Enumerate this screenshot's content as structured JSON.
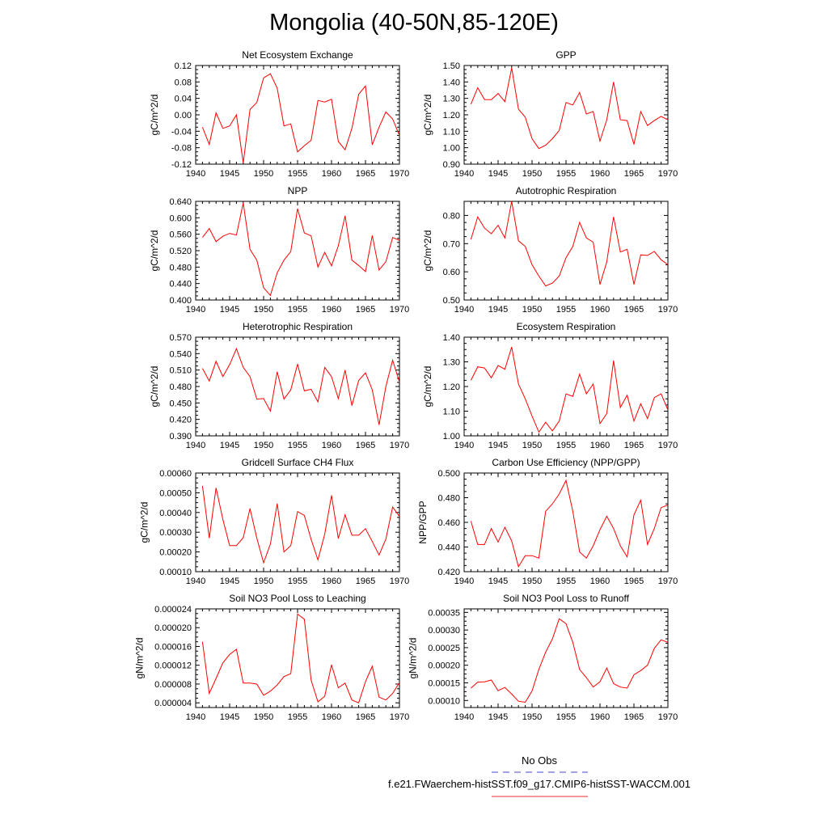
{
  "title": "Mongolia (40-50N,85-120E)",
  "legend": [
    {
      "label": "No Obs",
      "color": "#4444cc",
      "dash": "dashed"
    },
    {
      "label": "f.e21.FWaerchem-histSST.f09_g17.CMIP6-histSST-WACCM.001",
      "color": "#e03030",
      "dash": "solid"
    }
  ],
  "chart_data": [
    {
      "type": "line",
      "title": "Net Ecosystem Exchange",
      "ylabel": "gC/m^2/d",
      "xlim": [
        1940,
        1970
      ],
      "ylim": [
        -0.12,
        0.12
      ],
      "xticks": [
        "1940",
        "1945",
        "1950",
        "1955",
        "1960",
        "1965",
        "1970"
      ],
      "yticks": [
        "-0.12",
        "-0.08",
        "-0.04",
        "0.00",
        "0.04",
        "0.08",
        "0.12"
      ],
      "x": [
        1941,
        1942,
        1943,
        1944,
        1945,
        1946,
        1947,
        1948,
        1949,
        1950,
        1951,
        1952,
        1953,
        1954,
        1955,
        1956,
        1957,
        1958,
        1959,
        1960,
        1961,
        1962,
        1963,
        1964,
        1965,
        1966,
        1967,
        1968,
        1969,
        1970
      ],
      "series": [
        {
          "color": "#ff0000",
          "values": [
            -0.03,
            -0.072,
            0.005,
            -0.033,
            -0.027,
            0.0,
            -0.117,
            0.013,
            0.03,
            0.09,
            0.1,
            0.065,
            -0.027,
            -0.022,
            -0.09,
            -0.075,
            -0.062,
            0.035,
            0.031,
            0.038,
            -0.065,
            -0.085,
            -0.033,
            0.05,
            0.07,
            -0.073,
            -0.03,
            0.007,
            -0.01,
            -0.05
          ]
        }
      ]
    },
    {
      "type": "line",
      "title": "GPP",
      "ylabel": "gC/m^2/d",
      "xlim": [
        1940,
        1970
      ],
      "ylim": [
        0.9,
        1.5
      ],
      "xticks": [
        "1940",
        "1945",
        "1950",
        "1955",
        "1960",
        "1965",
        "1970"
      ],
      "yticks": [
        "0.90",
        "1.00",
        "1.10",
        "1.20",
        "1.30",
        "1.40",
        "1.50"
      ],
      "x": [
        1941,
        1942,
        1943,
        1944,
        1945,
        1946,
        1947,
        1948,
        1949,
        1950,
        1951,
        1952,
        1953,
        1954,
        1955,
        1956,
        1957,
        1958,
        1959,
        1960,
        1961,
        1962,
        1963,
        1964,
        1965,
        1966,
        1967,
        1968,
        1969,
        1970
      ],
      "series": [
        {
          "color": "#ff0000",
          "values": [
            1.265,
            1.365,
            1.293,
            1.292,
            1.33,
            1.28,
            1.485,
            1.235,
            1.185,
            1.055,
            0.995,
            1.015,
            1.055,
            1.105,
            1.275,
            1.26,
            1.335,
            1.205,
            1.22,
            1.04,
            1.17,
            1.4,
            1.17,
            1.165,
            1.02,
            1.22,
            1.135,
            1.165,
            1.19,
            1.17
          ]
        }
      ]
    },
    {
      "type": "line",
      "title": "NPP",
      "ylabel": "gC/m^2/d",
      "xlim": [
        1940,
        1970
      ],
      "ylim": [
        0.4,
        0.64
      ],
      "xticks": [
        "1940",
        "1945",
        "1950",
        "1955",
        "1960",
        "1965",
        "1970"
      ],
      "yticks": [
        "0.400",
        "0.440",
        "0.480",
        "0.520",
        "0.560",
        "0.600",
        "0.640"
      ],
      "x": [
        1941,
        1942,
        1943,
        1944,
        1945,
        1946,
        1947,
        1948,
        1949,
        1950,
        1951,
        1952,
        1953,
        1954,
        1955,
        1956,
        1957,
        1958,
        1959,
        1960,
        1961,
        1962,
        1963,
        1964,
        1965,
        1966,
        1967,
        1968,
        1969,
        1970
      ],
      "series": [
        {
          "color": "#ff0000",
          "values": [
            0.552,
            0.574,
            0.542,
            0.555,
            0.562,
            0.558,
            0.636,
            0.523,
            0.497,
            0.43,
            0.411,
            0.466,
            0.497,
            0.518,
            0.622,
            0.563,
            0.556,
            0.48,
            0.516,
            0.483,
            0.532,
            0.605,
            0.497,
            0.484,
            0.469,
            0.557,
            0.473,
            0.493,
            0.552,
            0.545
          ]
        }
      ]
    },
    {
      "type": "line",
      "title": "Autotrophic Respiration",
      "ylabel": "gC/m^2/d",
      "xlim": [
        1940,
        1970
      ],
      "ylim": [
        0.5,
        0.85
      ],
      "xticks": [
        "1940",
        "1945",
        "1950",
        "1955",
        "1960",
        "1965",
        "1970"
      ],
      "yticks": [
        "0.50",
        "0.60",
        "0.70",
        "0.80"
      ],
      "x": [
        1941,
        1942,
        1943,
        1944,
        1945,
        1946,
        1947,
        1948,
        1949,
        1950,
        1951,
        1952,
        1953,
        1954,
        1955,
        1956,
        1957,
        1958,
        1959,
        1960,
        1961,
        1962,
        1963,
        1964,
        1965,
        1966,
        1967,
        1968,
        1969,
        1970
      ],
      "series": [
        {
          "color": "#ff0000",
          "values": [
            0.715,
            0.795,
            0.755,
            0.735,
            0.765,
            0.72,
            0.85,
            0.71,
            0.69,
            0.625,
            0.585,
            0.55,
            0.56,
            0.585,
            0.65,
            0.69,
            0.775,
            0.72,
            0.705,
            0.555,
            0.635,
            0.795,
            0.67,
            0.68,
            0.555,
            0.66,
            0.658,
            0.672,
            0.643,
            0.625
          ]
        }
      ]
    },
    {
      "type": "line",
      "title": "Heterotrophic Respiration",
      "ylabel": "gC/m^2/d",
      "xlim": [
        1940,
        1970
      ],
      "ylim": [
        0.39,
        0.57
      ],
      "xticks": [
        "1940",
        "1945",
        "1950",
        "1955",
        "1960",
        "1965",
        "1970"
      ],
      "yticks": [
        "0.390",
        "0.420",
        "0.450",
        "0.480",
        "0.510",
        "0.540",
        "0.570"
      ],
      "x": [
        1941,
        1942,
        1943,
        1944,
        1945,
        1946,
        1947,
        1948,
        1949,
        1950,
        1951,
        1952,
        1953,
        1954,
        1955,
        1956,
        1957,
        1958,
        1959,
        1960,
        1961,
        1962,
        1963,
        1964,
        1965,
        1966,
        1967,
        1968,
        1969,
        1970
      ],
      "series": [
        {
          "color": "#ff0000",
          "values": [
            0.513,
            0.49,
            0.526,
            0.498,
            0.52,
            0.549,
            0.515,
            0.498,
            0.457,
            0.458,
            0.435,
            0.507,
            0.457,
            0.474,
            0.521,
            0.472,
            0.475,
            0.452,
            0.515,
            0.498,
            0.458,
            0.51,
            0.445,
            0.491,
            0.505,
            0.474,
            0.41,
            0.48,
            0.528,
            0.488
          ]
        }
      ]
    },
    {
      "type": "line",
      "title": "Ecosystem Respiration",
      "ylabel": "gC/m^2/d",
      "xlim": [
        1940,
        1970
      ],
      "ylim": [
        1.0,
        1.4
      ],
      "xticks": [
        "1940",
        "1945",
        "1950",
        "1955",
        "1960",
        "1965",
        "1970"
      ],
      "yticks": [
        "1.00",
        "1.10",
        "1.20",
        "1.30",
        "1.40"
      ],
      "x": [
        1941,
        1942,
        1943,
        1944,
        1945,
        1946,
        1947,
        1948,
        1949,
        1950,
        1951,
        1952,
        1953,
        1954,
        1955,
        1956,
        1957,
        1958,
        1959,
        1960,
        1961,
        1962,
        1963,
        1964,
        1965,
        1966,
        1967,
        1968,
        1969,
        1970
      ],
      "series": [
        {
          "color": "#ff0000",
          "values": [
            1.225,
            1.28,
            1.275,
            1.235,
            1.285,
            1.27,
            1.36,
            1.21,
            1.15,
            1.08,
            1.015,
            1.055,
            1.02,
            1.06,
            1.17,
            1.16,
            1.25,
            1.17,
            1.21,
            1.05,
            1.09,
            1.305,
            1.115,
            1.165,
            1.06,
            1.13,
            1.07,
            1.155,
            1.17,
            1.105
          ]
        }
      ]
    },
    {
      "type": "line",
      "title": "Gridcell Surface CH4 Flux",
      "ylabel": "gC/m^2/d",
      "xlim": [
        1940,
        1970
      ],
      "ylim": [
        0.0001,
        0.0006
      ],
      "xticks": [
        "1940",
        "1945",
        "1950",
        "1955",
        "1960",
        "1965",
        "1970"
      ],
      "yticks": [
        "0.00010",
        "0.00020",
        "0.00030",
        "0.00040",
        "0.00050",
        "0.00060"
      ],
      "x": [
        1941,
        1942,
        1943,
        1944,
        1945,
        1946,
        1947,
        1948,
        1949,
        1950,
        1951,
        1952,
        1953,
        1954,
        1955,
        1956,
        1957,
        1958,
        1959,
        1960,
        1961,
        1962,
        1963,
        1964,
        1965,
        1966,
        1967,
        1968,
        1969,
        1970
      ],
      "series": [
        {
          "color": "#ff0000",
          "values": [
            0.000535,
            0.00027,
            0.000525,
            0.000365,
            0.000232,
            0.000232,
            0.000272,
            0.00042,
            0.00027,
            0.000145,
            0.00024,
            0.000445,
            0.0002,
            0.000232,
            0.000405,
            0.000385,
            0.000263,
            0.00016,
            0.00029,
            0.000487,
            0.000268,
            0.000388,
            0.000285,
            0.000285,
            0.000318,
            0.000253,
            0.000185,
            0.000265,
            0.000428,
            0.00038
          ]
        }
      ]
    },
    {
      "type": "line",
      "title": "Carbon Use Efficiency (NPP/GPP)",
      "ylabel": "NPP/GPP",
      "xlim": [
        1940,
        1970
      ],
      "ylim": [
        0.42,
        0.5
      ],
      "xticks": [
        "1940",
        "1945",
        "1950",
        "1955",
        "1960",
        "1965",
        "1970"
      ],
      "yticks": [
        "0.420",
        "0.440",
        "0.460",
        "0.480",
        "0.500"
      ],
      "x": [
        1941,
        1942,
        1943,
        1944,
        1945,
        1946,
        1947,
        1948,
        1949,
        1950,
        1951,
        1952,
        1953,
        1954,
        1955,
        1956,
        1957,
        1958,
        1959,
        1960,
        1961,
        1962,
        1963,
        1964,
        1965,
        1966,
        1967,
        1968,
        1969,
        1970
      ],
      "series": [
        {
          "color": "#ff0000",
          "values": [
            0.461,
            0.442,
            0.442,
            0.455,
            0.444,
            0.456,
            0.445,
            0.424,
            0.433,
            0.433,
            0.431,
            0.469,
            0.475,
            0.483,
            0.494,
            0.469,
            0.436,
            0.431,
            0.441,
            0.454,
            0.465,
            0.455,
            0.441,
            0.432,
            0.466,
            0.478,
            0.442,
            0.455,
            0.472,
            0.474
          ]
        }
      ]
    },
    {
      "type": "line",
      "title": "Soil NO3 Pool Loss to Leaching",
      "ylabel": "gN/m^2/d",
      "xlim": [
        1940,
        1970
      ],
      "ylim": [
        3e-06,
        2.4e-05
      ],
      "xticks": [
        "1940",
        "1945",
        "1950",
        "1955",
        "1960",
        "1965",
        "1970"
      ],
      "yticks": [
        "0.000004",
        "0.000008",
        "0.000012",
        "0.000016",
        "0.000020",
        "0.000024"
      ],
      "x": [
        1941,
        1942,
        1943,
        1944,
        1945,
        1946,
        1947,
        1948,
        1949,
        1950,
        1951,
        1952,
        1953,
        1954,
        1955,
        1956,
        1957,
        1958,
        1959,
        1960,
        1961,
        1962,
        1963,
        1964,
        1965,
        1966,
        1967,
        1968,
        1969,
        1970
      ],
      "series": [
        {
          "color": "#ff0000",
          "values": [
            1.7e-05,
            6e-06,
            9.2e-06,
            1.25e-05,
            1.43e-05,
            1.54e-05,
            8.2e-06,
            8.2e-06,
            8e-06,
            5.6e-06,
            6.5e-06,
            7.8e-06,
            9.6e-06,
            1.02e-05,
            2.29e-05,
            2.18e-05,
            8.8e-06,
            4.2e-06,
            5.4e-06,
            1.21e-05,
            7.2e-06,
            8.2e-06,
            4.6e-06,
            4e-06,
            8.5e-06,
            1.18e-05,
            5.2e-06,
            4.6e-06,
            6e-06,
            8.3e-06
          ]
        }
      ]
    },
    {
      "type": "line",
      "title": "Soil NO3 Pool Loss to Runoff",
      "ylabel": "gN/m^2/d",
      "xlim": [
        1940,
        1970
      ],
      "ylim": [
        8e-05,
        0.00036
      ],
      "xticks": [
        "1940",
        "1945",
        "1950",
        "1955",
        "1960",
        "1965",
        "1970"
      ],
      "yticks": [
        "0.00010",
        "0.00015",
        "0.00020",
        "0.00025",
        "0.00030",
        "0.00035"
      ],
      "x": [
        1941,
        1942,
        1943,
        1944,
        1945,
        1946,
        1947,
        1948,
        1949,
        1950,
        1951,
        1952,
        1953,
        1954,
        1955,
        1956,
        1957,
        1958,
        1959,
        1960,
        1961,
        1962,
        1963,
        1964,
        1965,
        1966,
        1967,
        1968,
        1969,
        1970
      ],
      "series": [
        {
          "color": "#ff0000",
          "values": [
            0.000135,
            0.000152,
            0.000153,
            0.000158,
            0.000128,
            0.000137,
            0.000118,
            9.8e-05,
            9.5e-05,
            0.000127,
            0.000188,
            0.000237,
            0.000275,
            0.000332,
            0.000318,
            0.000265,
            0.000188,
            0.000165,
            0.000138,
            0.000153,
            0.000192,
            0.000148,
            0.000138,
            0.000135,
            0.000173,
            0.000185,
            0.0002,
            0.000248,
            0.000272,
            0.000265
          ]
        }
      ]
    }
  ]
}
